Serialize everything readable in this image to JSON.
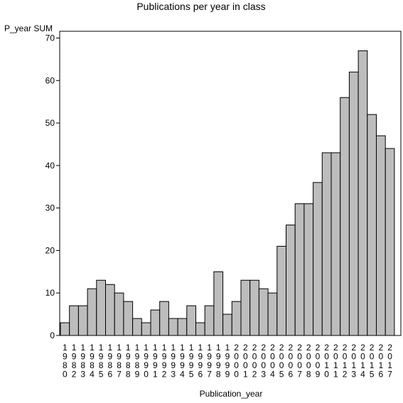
{
  "chart_data": {
    "type": "bar",
    "title": "Publications per year in class",
    "ylabel": "P_year SUM",
    "xlabel": "Publication_year",
    "ylim": [
      0,
      70
    ],
    "yticks": [
      0,
      10,
      20,
      30,
      40,
      50,
      60,
      70
    ],
    "grid": false,
    "bar_color": "#bdbdbd",
    "categories": [
      "1980",
      "1982",
      "1983",
      "1984",
      "1985",
      "1986",
      "1987",
      "1988",
      "1989",
      "1990",
      "1991",
      "1992",
      "1993",
      "1994",
      "1995",
      "1996",
      "1997",
      "1998",
      "1999",
      "2000",
      "2001",
      "2002",
      "2003",
      "2004",
      "2005",
      "2006",
      "2007",
      "2008",
      "2009",
      "2010",
      "2011",
      "2012",
      "2013",
      "2014",
      "2015",
      "2016",
      "2017"
    ],
    "values": [
      3,
      7,
      7,
      11,
      13,
      12,
      10,
      8,
      4,
      3,
      6,
      8,
      4,
      4,
      7,
      3,
      7,
      15,
      5,
      8,
      13,
      13,
      11,
      10,
      21,
      26,
      31,
      31,
      36,
      43,
      43,
      56,
      62,
      67,
      52,
      47,
      44
    ]
  }
}
